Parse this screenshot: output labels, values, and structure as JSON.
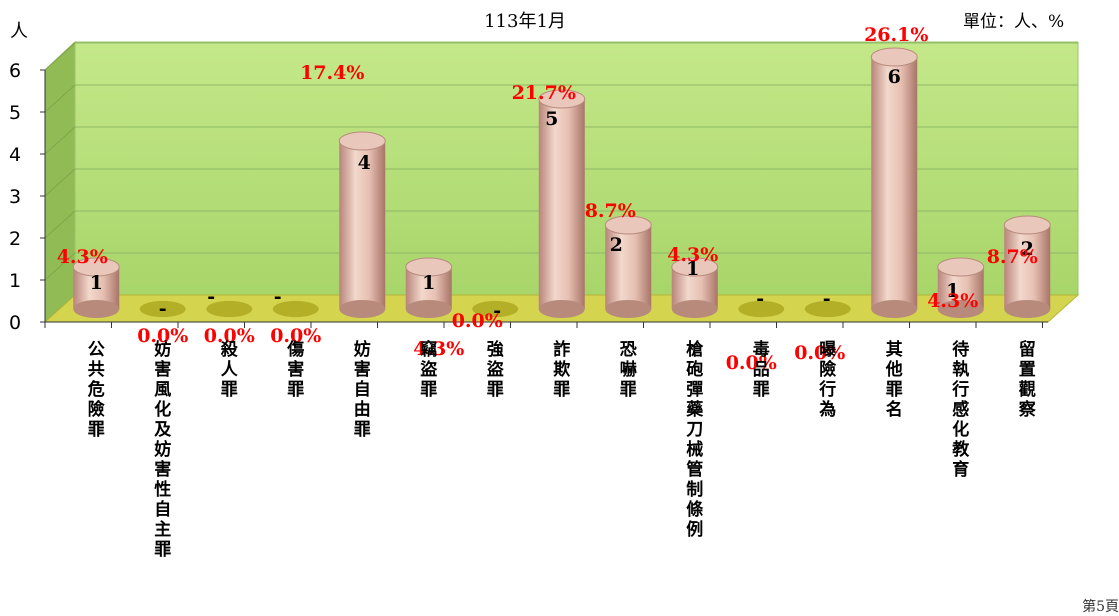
{
  "chart_data": {
    "type": "bar",
    "title": "113年1月",
    "ylabel": "人",
    "unit_label": "單位：人、%",
    "ylim": [
      0,
      6
    ],
    "y_ticks": [
      "0",
      "1",
      "2",
      "3",
      "4",
      "5",
      "6"
    ],
    "grid": true,
    "categories": [
      "公共危險罪",
      "妨害風化及妨害性自主罪",
      "殺人罪",
      "傷害罪",
      "妨害自由罪",
      "竊盜罪",
      "強盜罪",
      "詐欺罪",
      "恐嚇罪",
      "槍砲彈藥刀械管制條例",
      "毒品罪",
      "曝險行為",
      "其他罪名",
      "待執行感化教育",
      "留置觀察"
    ],
    "values": [
      1,
      0,
      0,
      0,
      4,
      1,
      0,
      5,
      2,
      1,
      0,
      0,
      6,
      1,
      2
    ],
    "value_labels": [
      "1",
      "-",
      "-",
      "-",
      "4",
      "1",
      "-",
      "5",
      "2",
      "1",
      "-",
      "-",
      "6",
      "1",
      "2"
    ],
    "percent_labels": [
      "4.3%",
      "0.0%",
      "0.0%",
      "0.0%",
      "17.4%",
      "4.3%",
      "0.0%",
      "21.7%",
      "8.7%",
      "4.3%",
      "0.0%",
      "0.0%",
      "26.1%",
      "4.3%",
      "8.7%"
    ]
  },
  "colors": {
    "wall": "#b9e07a",
    "wall_side": "#8fbf4f",
    "floor": "#d6d452",
    "bar": "#d9a99a",
    "percent": "#ff0000"
  },
  "footer": {
    "page": "第5頁"
  }
}
